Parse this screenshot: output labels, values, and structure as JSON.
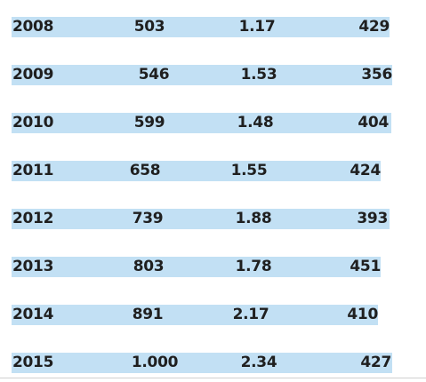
{
  "table": {
    "rows": [
      [
        "2008",
        "503",
        "1.17",
        "429"
      ],
      [
        "2009",
        "546",
        "1.53",
        "356"
      ],
      [
        "2010",
        "599",
        "1.48",
        "404"
      ],
      [
        "2011",
        "658",
        "1.55",
        "424"
      ],
      [
        "2012",
        "739",
        "1.88",
        "393"
      ],
      [
        "2013",
        "803",
        "1.78",
        "451"
      ],
      [
        "2014",
        "891",
        "2.17",
        "410"
      ],
      [
        "2015",
        "1.000",
        "2.34",
        "427"
      ]
    ]
  }
}
